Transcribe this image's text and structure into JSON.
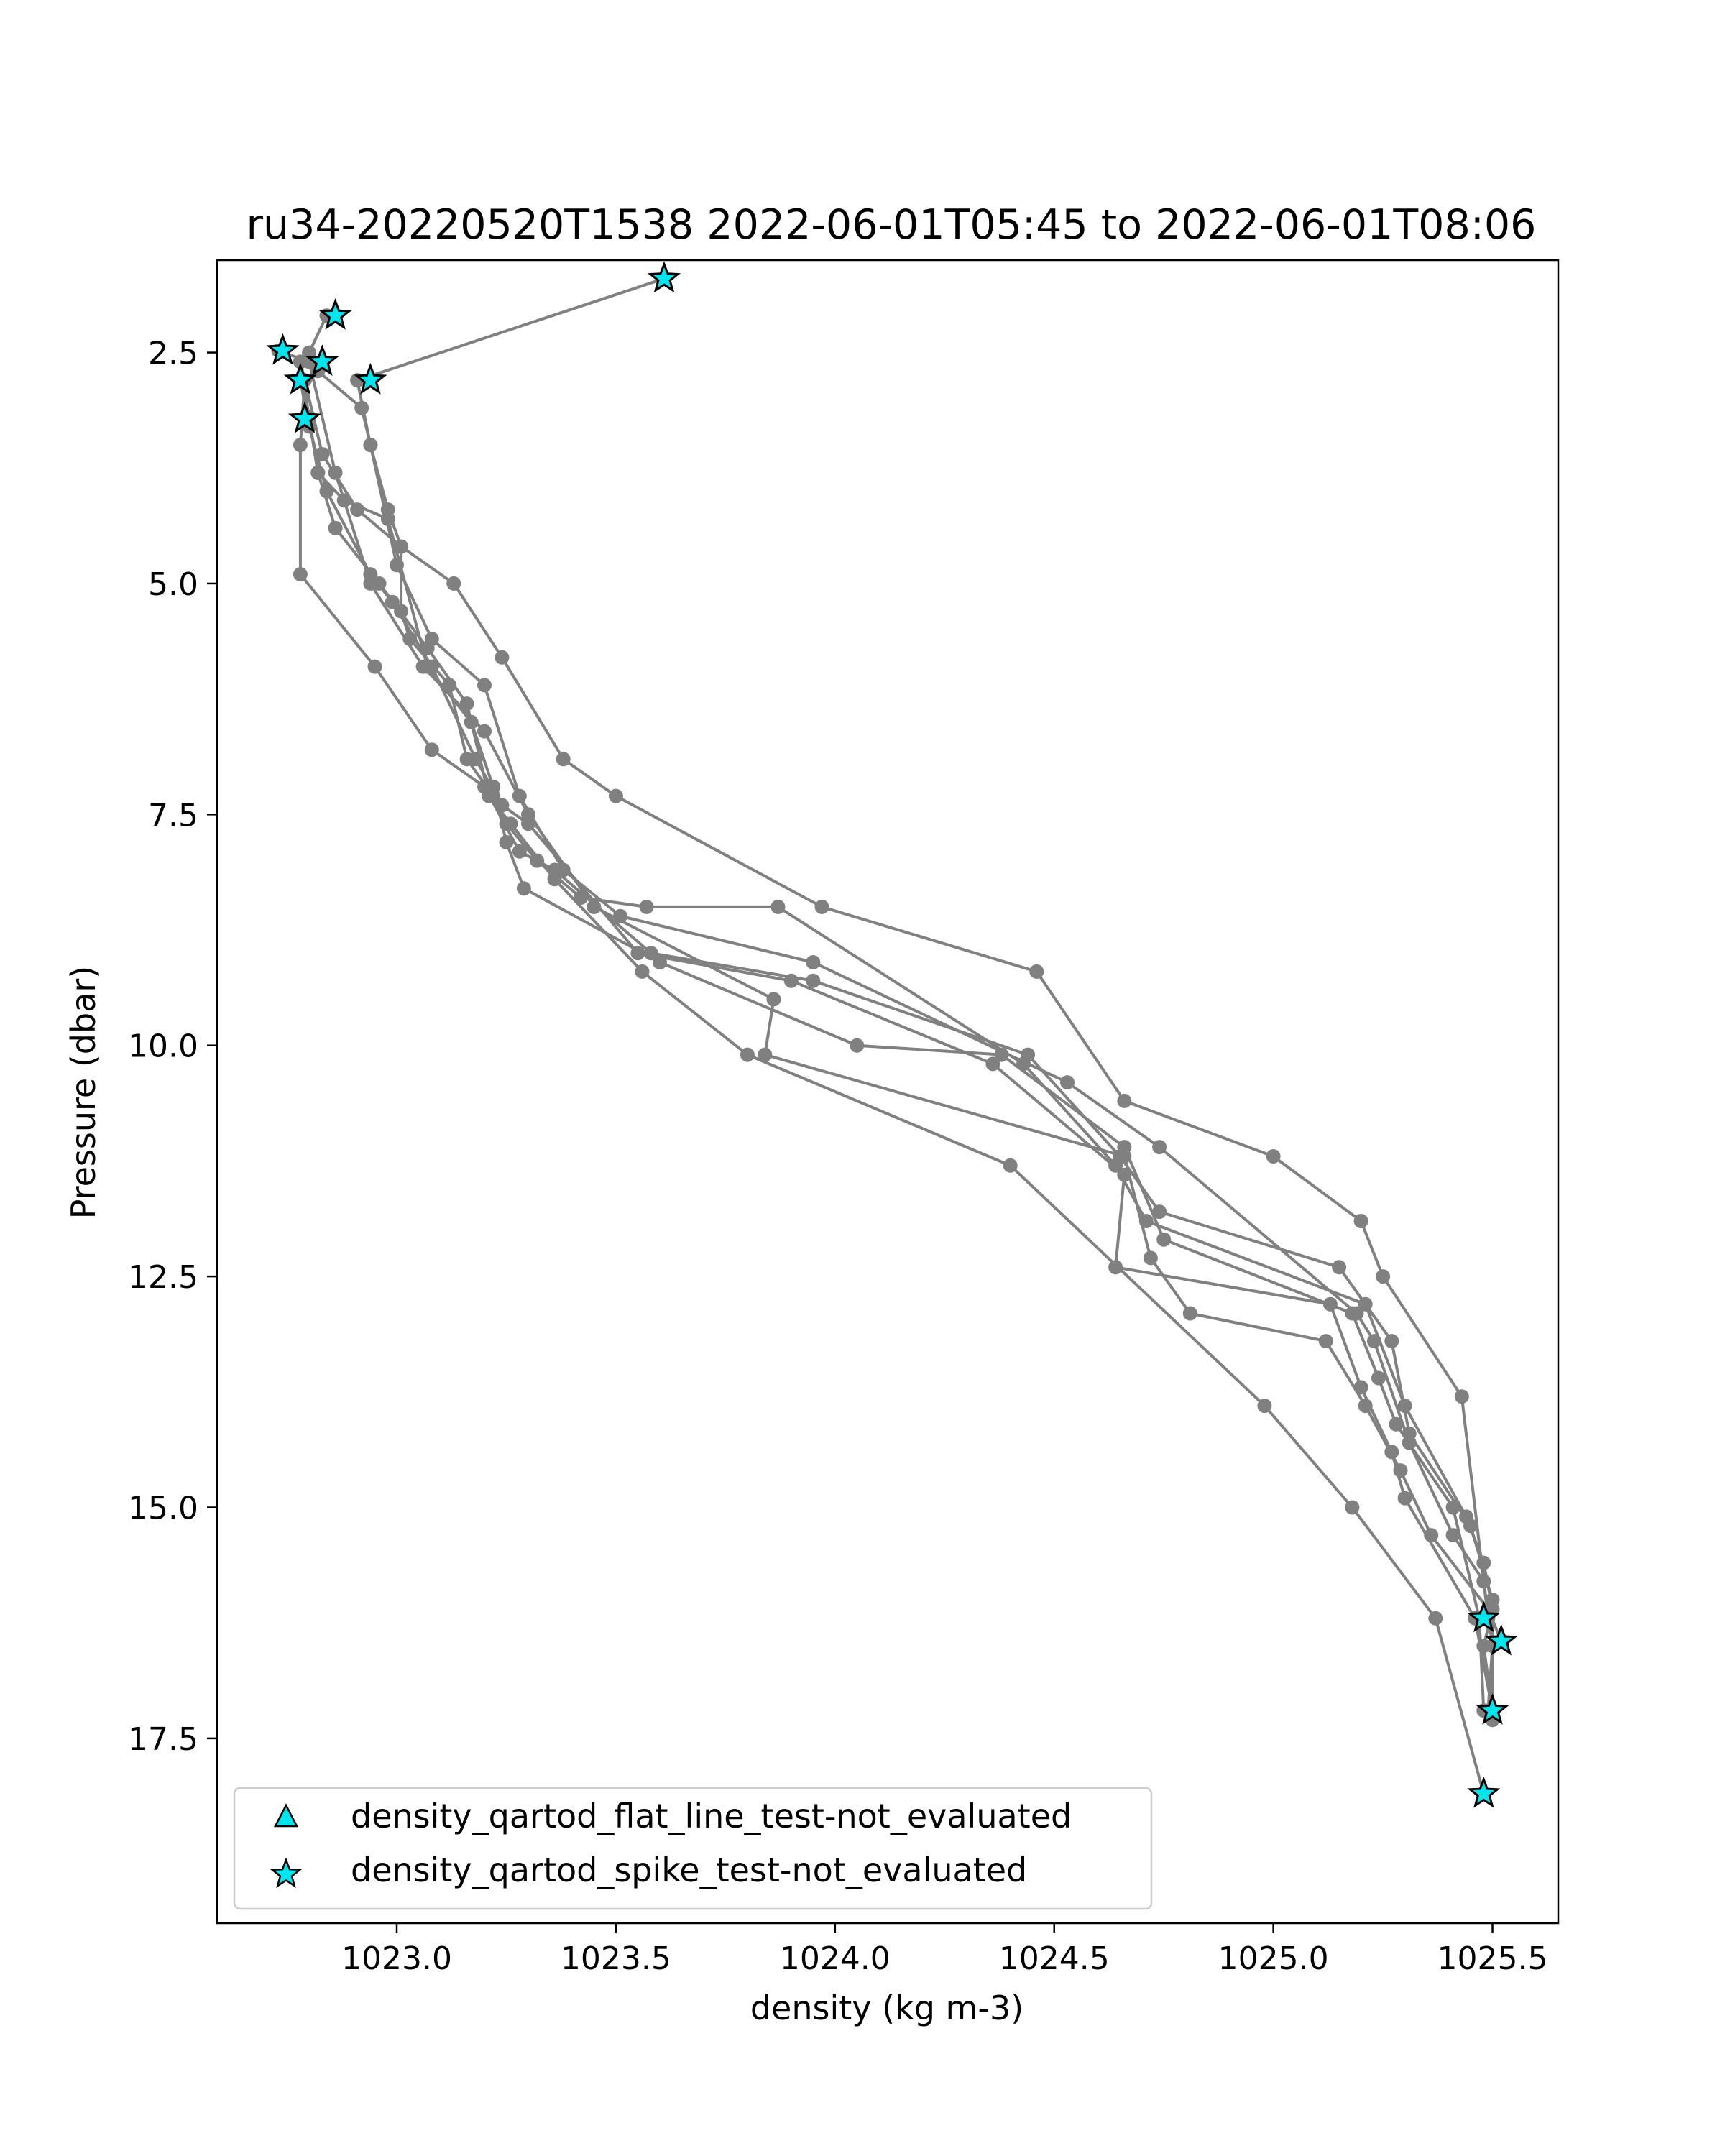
{
  "chart_data": {
    "type": "line",
    "title": "ru34-20220520T1538 2022-06-01T05:45 to 2022-06-01T08:06",
    "xlabel": "density (kg m-3)",
    "ylabel": "Pressure (dbar)",
    "xlim": [
      1022.59,
      1025.65
    ],
    "ylim": [
      19.5,
      1.5
    ],
    "y_inverted": true,
    "xticks": [
      1023.0,
      1023.5,
      1024.0,
      1024.5,
      1025.0,
      1025.5
    ],
    "xtick_labels": [
      "1023.0",
      "1023.5",
      "1024.0",
      "1024.5",
      "1025.0",
      "1025.5"
    ],
    "yticks": [
      2.5,
      5.0,
      7.5,
      10.0,
      12.5,
      15.0,
      17.5
    ],
    "ytick_labels": [
      "2.5",
      "5.0",
      "7.5",
      "10.0",
      "12.5",
      "15.0",
      "17.5"
    ],
    "grid": false,
    "line_color": "#808080",
    "marker_color": "#808080",
    "flag_color": "#00e5ee",
    "flag_edge_color": "#000000",
    "series": [
      {
        "x": [
          1023.61,
          1022.91,
          1022.94,
          1022.98,
          1023.01,
          1023.01,
          1023.03,
          1023.12,
          1023.16,
          1023.22,
          1023.25,
          1023.32,
          1023.42,
          1023.57,
          1023.87,
          1024.43,
          1024.64,
          1024.71,
          1025.21,
          1025.3,
          1025.44,
          1025.48,
          1025.5,
          1025.48,
          1025.5
        ]
      },
      {
        "x": [
          1022.84,
          1022.8,
          1022.82,
          1022.92,
          1022.94,
          1023.0,
          1023.08,
          1023.2,
          1023.28,
          1023.38,
          1023.51,
          1023.95,
          1024.53,
          1024.74,
          1025.19,
          1025.23,
          1025.31,
          1025.41,
          1025.48,
          1025.5,
          1025.49
        ]
      },
      {
        "x": [
          1022.79,
          1022.78,
          1022.78,
          1022.95,
          1023.08,
          1023.2,
          1023.28,
          1023.36,
          1023.58,
          1023.95,
          1024.44,
          1024.65,
          1024.74,
          1025.15,
          1025.27,
          1025.31,
          1025.45,
          1025.5,
          1025.5
        ]
      },
      {
        "x": [
          1022.8,
          1022.82,
          1022.88,
          1022.98,
          1023.07,
          1023.17,
          1023.22,
          1023.25,
          1023.29,
          1023.6,
          1024.05,
          1024.38,
          1024.66,
          1024.75,
          1025.18,
          1025.24,
          1025.28,
          1025.41,
          1025.47,
          1025.48
        ]
      },
      {
        "x": [
          1022.73,
          1022.8,
          1022.86,
          1022.94,
          1023.06,
          1023.2,
          1023.3,
          1023.45,
          1023.86,
          1023.84,
          1024.66,
          1024.72,
          1024.81,
          1025.12,
          1025.21,
          1025.29,
          1025.36,
          1025.49,
          1025.52
        ]
      },
      {
        "x": [
          1022.78,
          1022.8,
          1022.84,
          1022.94,
          1022.99,
          1023.08,
          1023.18,
          1023.24,
          1023.3,
          1023.55,
          1023.9,
          1024.36,
          1024.66,
          1024.64,
          1025.13,
          1025.2,
          1025.27,
          1025.3,
          1025.46,
          1025.5
        ]
      },
      {
        "x": [
          1022.78,
          1022.82,
          1022.86,
          1022.96,
          1023.07,
          1023.16,
          1023.21,
          1023.26,
          1023.36,
          1023.56,
          1023.8,
          1024.4,
          1024.98,
          1025.18,
          1025.37,
          1025.48
        ]
      },
      {
        "x": [
          1022.78,
          1022.83,
          1022.91,
          1023.01,
          1023.13,
          1023.24,
          1023.38,
          1023.5,
          1023.97,
          1024.46,
          1024.66,
          1025.0,
          1025.2,
          1025.25,
          1025.43,
          1025.49
        ]
      }
    ],
    "flags": [
      {
        "name": "density_qartod_flat_line_test-not_evaluated",
        "marker": "triangle",
        "points": []
      },
      {
        "name": "density_qartod_spike_test-not_evaluated",
        "marker": "star",
        "points": [
          {
            "x": 1023.61,
            "y": 1.7
          },
          {
            "x": 1022.86,
            "y": 2.1
          },
          {
            "x": 1022.74,
            "y": 2.48
          },
          {
            "x": 1022.83,
            "y": 2.6
          },
          {
            "x": 1022.78,
            "y": 2.8
          },
          {
            "x": 1022.94,
            "y": 2.8
          },
          {
            "x": 1022.79,
            "y": 3.22
          },
          {
            "x": 1025.48,
            "y": 16.2
          },
          {
            "x": 1025.52,
            "y": 16.45
          },
          {
            "x": 1025.5,
            "y": 17.2
          },
          {
            "x": 1025.48,
            "y": 18.1
          }
        ]
      }
    ],
    "legend": {
      "position": "lower left",
      "entries": [
        "density_qartod_flat_line_test-not_evaluated",
        "density_qartod_spike_test-not_evaluated"
      ]
    }
  }
}
